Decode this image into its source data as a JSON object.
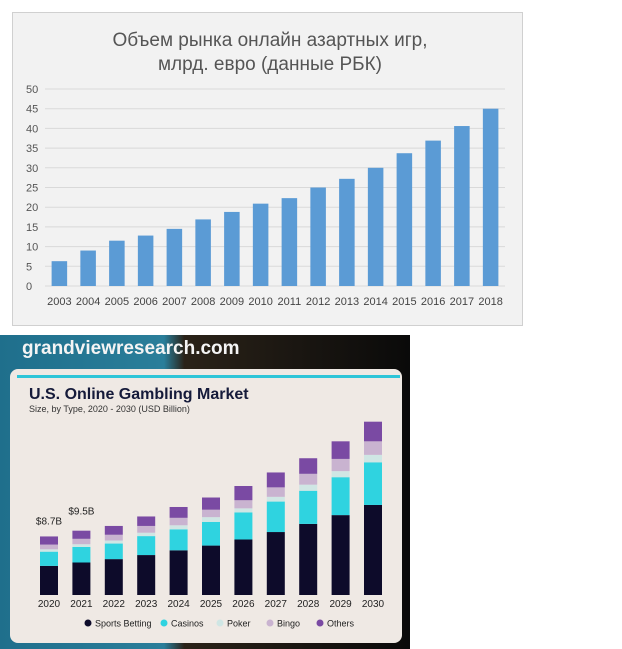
{
  "chart_data": [
    {
      "type": "bar",
      "title": "Объем рынка онлайн азартных игр,",
      "subtitle": "млрд. евро (данные РБК)",
      "categories": [
        "2003",
        "2004",
        "2005",
        "2006",
        "2007",
        "2008",
        "2009",
        "2010",
        "2011",
        "2012",
        "2013",
        "2014",
        "2015",
        "2016",
        "2017",
        "2018"
      ],
      "values": [
        6.3,
        9.0,
        11.5,
        12.8,
        14.5,
        16.9,
        18.8,
        20.9,
        22.3,
        25.0,
        27.2,
        30.0,
        33.7,
        36.9,
        40.6,
        45.0
      ],
      "ylim": [
        0,
        50
      ],
      "yticks": [
        0,
        5,
        10,
        15,
        20,
        25,
        30,
        35,
        40,
        45,
        50
      ],
      "xlabel": "",
      "ylabel": "",
      "grid": true,
      "colors": {
        "bar": "#5b9bd5",
        "background": "#f2f2f2",
        "grid": "#d9d9d9"
      }
    },
    {
      "type": "bar",
      "stacked": true,
      "source": "grandviewresearch.com",
      "title": "U.S. Online Gambling Market",
      "subtitle": "Size, by Type, 2020 - 2030 (USD Billion)",
      "categories": [
        "2020",
        "2021",
        "2022",
        "2023",
        "2024",
        "2025",
        "2026",
        "2027",
        "2028",
        "2029",
        "2030"
      ],
      "series": [
        {
          "name": "Sports Betting",
          "color": "#0d0b2a",
          "values": [
            4.3,
            4.8,
            5.3,
            5.9,
            6.6,
            7.3,
            8.2,
            9.3,
            10.5,
            11.8,
            13.3
          ]
        },
        {
          "name": "Casinos",
          "color": "#2fd3e0",
          "values": [
            2.1,
            2.3,
            2.3,
            2.8,
            3.1,
            3.5,
            4.0,
            4.5,
            4.9,
            5.6,
            6.3
          ]
        },
        {
          "name": "Poker",
          "color": "#cfe6e4",
          "values": [
            0.35,
            0.4,
            0.45,
            0.5,
            0.6,
            0.7,
            0.6,
            0.7,
            0.9,
            0.9,
            1.1
          ]
        },
        {
          "name": "Bingo",
          "color": "#c9b3d0",
          "values": [
            0.7,
            0.8,
            0.85,
            1.0,
            1.1,
            1.1,
            1.2,
            1.4,
            1.6,
            1.8,
            2.0
          ]
        },
        {
          "name": "Others",
          "color": "#7a4aa3",
          "values": [
            1.2,
            1.2,
            1.3,
            1.4,
            1.6,
            1.8,
            2.1,
            2.2,
            2.3,
            2.6,
            2.9
          ]
        }
      ],
      "annotations": [
        {
          "category": "2020",
          "text": "$8.7B"
        },
        {
          "category": "2021",
          "text": "$9.5B"
        }
      ],
      "legend": "bottom",
      "colors": {
        "card": "#efe9e4",
        "accent": "#2ec5d8",
        "frame": "#10252e"
      }
    }
  ]
}
